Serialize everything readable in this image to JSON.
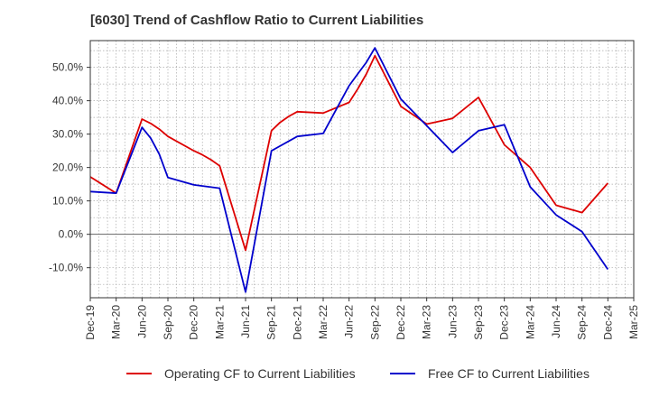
{
  "chart_data": {
    "type": "line",
    "title": "[6030]  Trend of Cashflow Ratio to Current Liabilities",
    "xlabel": "",
    "ylabel": "",
    "x_ticks": [
      "Dec-19",
      "Mar-20",
      "Jun-20",
      "Sep-20",
      "Dec-20",
      "Mar-21",
      "Jun-21",
      "Sep-21",
      "Dec-21",
      "Mar-22",
      "Jun-22",
      "Sep-22",
      "Dec-22",
      "Mar-23",
      "Jun-23",
      "Sep-23",
      "Dec-23",
      "Mar-24",
      "Jun-24",
      "Sep-24",
      "Dec-24",
      "Mar-25"
    ],
    "y_ticks": [
      50.0,
      40.0,
      30.0,
      20.0,
      10.0,
      0.0,
      -10.0
    ],
    "y_tick_labels": [
      "50.0%",
      "40.0%",
      "30.0%",
      "20.0%",
      "10.0%",
      "0.0%",
      "-10.0%"
    ],
    "ylim": [
      -19,
      58
    ],
    "grid": true,
    "legend_position": "bottom",
    "series": [
      {
        "name": "Operating CF to Current Liabilities",
        "color": "#dd0000",
        "points": [
          {
            "x": "Dec-19",
            "y": 17.2
          },
          {
            "x": "Mar-20",
            "y": 12.3
          },
          {
            "x": "Jun-20",
            "y": 34.5
          },
          {
            "x": "Jul-20",
            "y": 33.2
          },
          {
            "x": "Aug-20",
            "y": 31.5
          },
          {
            "x": "Sep-20",
            "y": 29.3
          },
          {
            "x": "Dec-20",
            "y": 25.0
          },
          {
            "x": "Jan-21",
            "y": 23.8
          },
          {
            "x": "Feb-21",
            "y": 22.3
          },
          {
            "x": "Mar-21",
            "y": 20.5
          },
          {
            "x": "Jun-21",
            "y": -4.8
          },
          {
            "x": "Sep-21",
            "y": 31.0
          },
          {
            "x": "Oct-21",
            "y": 33.5
          },
          {
            "x": "Nov-21",
            "y": 35.3
          },
          {
            "x": "Dec-21",
            "y": 36.7
          },
          {
            "x": "Mar-22",
            "y": 36.3
          },
          {
            "x": "Jun-22",
            "y": 39.5
          },
          {
            "x": "Jul-22",
            "y": 43.5
          },
          {
            "x": "Aug-22",
            "y": 48.0
          },
          {
            "x": "Sep-22",
            "y": 53.5
          },
          {
            "x": "Dec-22",
            "y": 38.3
          },
          {
            "x": "Mar-23",
            "y": 33.0
          },
          {
            "x": "Jun-23",
            "y": 34.7
          },
          {
            "x": "Sep-23",
            "y": 41.0
          },
          {
            "x": "Dec-23",
            "y": 26.8
          },
          {
            "x": "Mar-24",
            "y": 20.0
          },
          {
            "x": "Jun-24",
            "y": 8.7
          },
          {
            "x": "Sep-24",
            "y": 6.5
          },
          {
            "x": "Dec-24",
            "y": 15.3
          }
        ]
      },
      {
        "name": "Free CF to Current Liabilities",
        "color": "#0000cc",
        "points": [
          {
            "x": "Dec-19",
            "y": 12.8
          },
          {
            "x": "Mar-20",
            "y": 12.3
          },
          {
            "x": "Jun-20",
            "y": 32.0
          },
          {
            "x": "Jul-20",
            "y": 28.8
          },
          {
            "x": "Aug-20",
            "y": 24.0
          },
          {
            "x": "Sep-20",
            "y": 17.0
          },
          {
            "x": "Dec-20",
            "y": 14.8
          },
          {
            "x": "Mar-21",
            "y": 13.8
          },
          {
            "x": "Jun-21",
            "y": -17.3
          },
          {
            "x": "Sep-21",
            "y": 25.0
          },
          {
            "x": "Dec-21",
            "y": 29.3
          },
          {
            "x": "Mar-22",
            "y": 30.2
          },
          {
            "x": "Jun-22",
            "y": 44.5
          },
          {
            "x": "Jul-22",
            "y": 48.0
          },
          {
            "x": "Aug-22",
            "y": 51.5
          },
          {
            "x": "Sep-22",
            "y": 55.8
          },
          {
            "x": "Dec-22",
            "y": 40.5
          },
          {
            "x": "Mar-23",
            "y": 32.5
          },
          {
            "x": "Jun-23",
            "y": 24.5
          },
          {
            "x": "Sep-23",
            "y": 31.0
          },
          {
            "x": "Dec-23",
            "y": 32.8
          },
          {
            "x": "Mar-24",
            "y": 14.2
          },
          {
            "x": "Jun-24",
            "y": 5.8
          },
          {
            "x": "Sep-24",
            "y": 0.8
          },
          {
            "x": "Dec-24",
            "y": -10.5
          }
        ]
      }
    ]
  }
}
